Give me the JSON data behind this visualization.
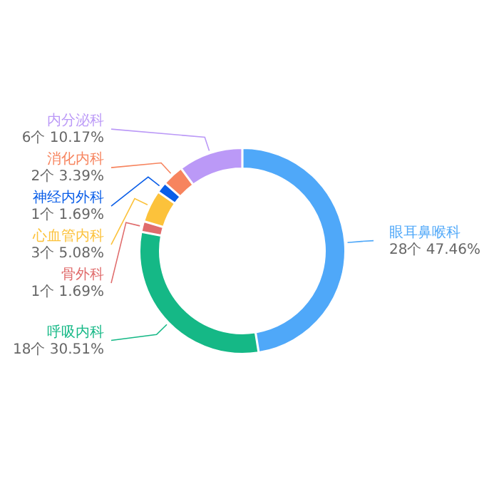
{
  "chart_data": {
    "type": "donut",
    "categories": [
      "眼耳鼻喉科",
      "呼吸内科",
      "骨外科",
      "心血管内科",
      "神经内外科",
      "消化内科",
      "内分泌科"
    ],
    "values": [
      28,
      18,
      1,
      3,
      1,
      2,
      6
    ],
    "colors": [
      "#4fa8f9",
      "#15b886",
      "#e06c6c",
      "#fcc23b",
      "#0a5ee8",
      "#f7845e",
      "#bb99f7"
    ],
    "value_labels": [
      "28个  47.46%",
      "18个  30.51%",
      "1个  1.69%",
      "3个  5.08%",
      "1个  1.69%",
      "2个  3.39%",
      "6个  10.17%"
    ]
  }
}
